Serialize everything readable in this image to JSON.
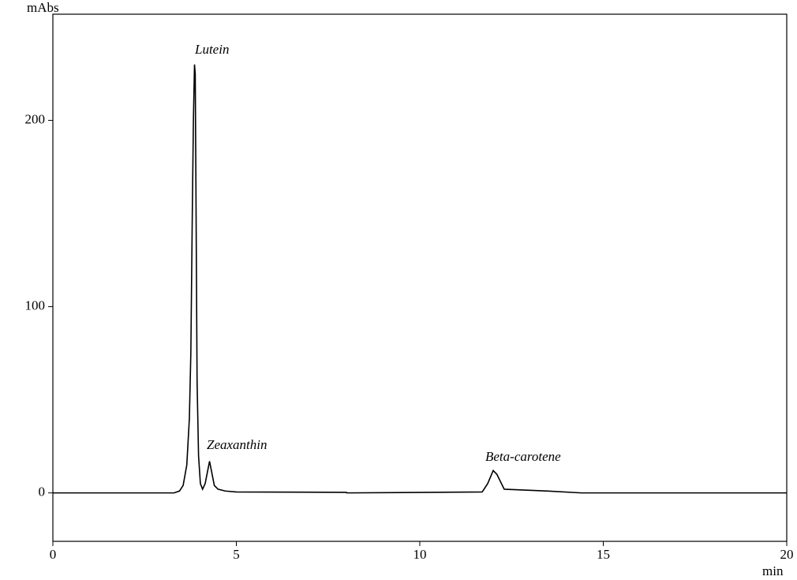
{
  "chart_data": {
    "type": "line",
    "ylabel": "mAbs",
    "xlabel": "min",
    "x": [
      0,
      3.3,
      3.45,
      3.55,
      3.65,
      3.72,
      3.76,
      3.8,
      3.83,
      3.86,
      3.88,
      3.9,
      3.93,
      3.97,
      4.02,
      4.08,
      4.15,
      4.22,
      4.27,
      4.32,
      4.4,
      4.5,
      4.7,
      5,
      8,
      8.01,
      11.7,
      11.85,
      12.0,
      12.1,
      12.3,
      13.5,
      14.4,
      20
    ],
    "series": [
      {
        "color": "#000000",
        "values": [
          0,
          0,
          1,
          4,
          15,
          40,
          75,
          150,
          200,
          230,
          225,
          160,
          60,
          20,
          5,
          2,
          5,
          12,
          17,
          12,
          4,
          2,
          1,
          0.5,
          0.3,
          0,
          0.5,
          5,
          12,
          10,
          2,
          1,
          0,
          0
        ]
      }
    ],
    "annotations": [
      "Lutein",
      "Zeaxanthin",
      "Beta-carotene"
    ],
    "xlim": [
      0,
      20
    ],
    "xticks": [
      0,
      5,
      10,
      15,
      20
    ],
    "ylim": [
      -26,
      257
    ],
    "yticks": [
      0,
      100,
      200
    ],
    "grid": false
  }
}
